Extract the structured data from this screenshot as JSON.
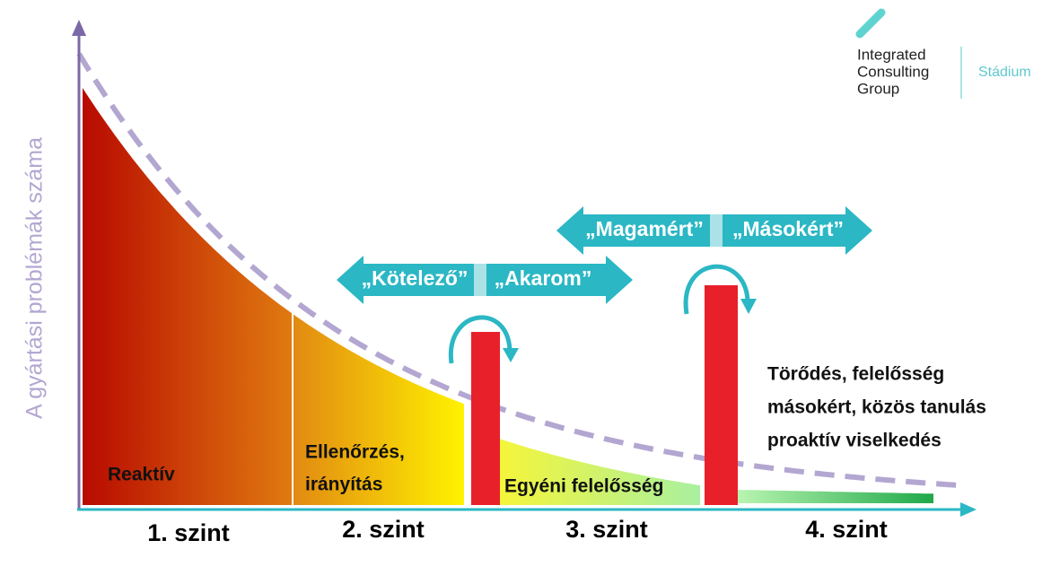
{
  "y_axis_label": "A gyártási problémák száma",
  "logo": {
    "lines": [
      "Integrated",
      "Consulting",
      "Group"
    ],
    "product": "Stádium"
  },
  "arrows": [
    {
      "left": "„Kötelező”",
      "right": "„Akarom”"
    },
    {
      "left": "„Magamért”",
      "right": "„Másokért”"
    }
  ],
  "zones": [
    {
      "lines": [
        "Reaktív"
      ]
    },
    {
      "lines": [
        "Ellenőrzés,",
        "irányítás"
      ]
    },
    {
      "lines": [
        "Egyéni felelősség"
      ]
    },
    {
      "lines": [
        "Törődés, felelősség",
        "másokért,  közös tanulás",
        "proaktív viselkedés"
      ]
    }
  ],
  "levels": [
    "1. szint",
    "2. szint",
    "3. szint",
    "4. szint"
  ]
}
